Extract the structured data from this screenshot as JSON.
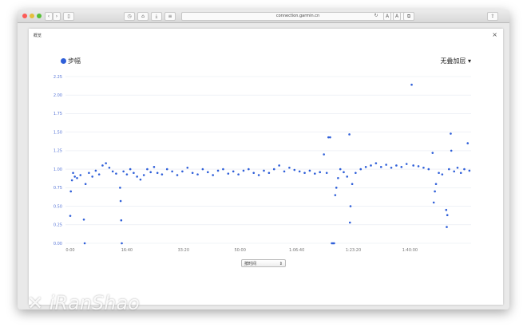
{
  "browser": {
    "url": "connection.garmin.cn",
    "colors": {
      "close": "#fc5b57",
      "min": "#e5bf3c",
      "max": "#57c038"
    }
  },
  "modal": {
    "title": "概览",
    "close_icon": "close-icon"
  },
  "legend": {
    "label": "步幅",
    "color": "#2f5fd9"
  },
  "overlay_dropdown": {
    "label": "无叠加层 ▾"
  },
  "x_select": {
    "value": "按时间"
  },
  "watermark": "iRanShao",
  "chart_data": {
    "type": "scatter",
    "series": [
      {
        "name": "步幅",
        "color": "#2f5fd9"
      }
    ],
    "ylim": [
      0,
      2.25
    ],
    "yticks": [
      "0.00",
      "0.25",
      "0.50",
      "0.75",
      "1.00",
      "1.25",
      "1.50",
      "1.75",
      "2.00",
      "2.25"
    ],
    "xticks": [
      "0:00",
      "16:40",
      "33:20",
      "50:00",
      "1:06:40",
      "1:23:20",
      "1:40:00"
    ],
    "xlim": [
      "0:00",
      "1:58:00"
    ],
    "grid": true,
    "points": [
      [
        "0:00",
        0.37
      ],
      [
        "0:10",
        0.7
      ],
      [
        "0:30",
        0.85
      ],
      [
        "0:50",
        0.95
      ],
      [
        "1:20",
        0.9
      ],
      [
        "2:00",
        0.88
      ],
      [
        "3:00",
        0.92
      ],
      [
        "4:00",
        0.32
      ],
      [
        "4:15",
        0.0
      ],
      [
        "4:30",
        0.8
      ],
      [
        "5:30",
        0.95
      ],
      [
        "6:30",
        0.9
      ],
      [
        "7:30",
        0.98
      ],
      [
        "8:30",
        0.93
      ],
      [
        "9:30",
        1.05
      ],
      [
        "10:30",
        1.08
      ],
      [
        "11:30",
        1.02
      ],
      [
        "12:30",
        0.97
      ],
      [
        "13:30",
        0.94
      ],
      [
        "14:40",
        0.75
      ],
      [
        "14:50",
        0.57
      ],
      [
        "15:00",
        0.31
      ],
      [
        "15:10",
        0.0
      ],
      [
        "15:40",
        0.97
      ],
      [
        "16:40",
        0.93
      ],
      [
        "17:40",
        1.0
      ],
      [
        "18:40",
        0.95
      ],
      [
        "19:40",
        0.9
      ],
      [
        "20:40",
        0.86
      ],
      [
        "21:40",
        0.92
      ],
      [
        "22:40",
        1.0
      ],
      [
        "23:40",
        0.96
      ],
      [
        "24:40",
        1.03
      ],
      [
        "25:40",
        0.95
      ],
      [
        "27:00",
        0.93
      ],
      [
        "28:30",
        1.0
      ],
      [
        "30:00",
        0.97
      ],
      [
        "31:30",
        0.92
      ],
      [
        "33:00",
        0.97
      ],
      [
        "34:30",
        1.02
      ],
      [
        "36:00",
        0.95
      ],
      [
        "37:30",
        0.93
      ],
      [
        "39:00",
        1.0
      ],
      [
        "40:30",
        0.96
      ],
      [
        "42:00",
        0.92
      ],
      [
        "43:30",
        0.98
      ],
      [
        "45:00",
        1.0
      ],
      [
        "46:30",
        0.94
      ],
      [
        "48:00",
        0.97
      ],
      [
        "49:30",
        0.93
      ],
      [
        "51:00",
        0.98
      ],
      [
        "52:30",
        1.0
      ],
      [
        "54:00",
        0.95
      ],
      [
        "55:30",
        0.92
      ],
      [
        "57:00",
        0.98
      ],
      [
        "58:30",
        0.95
      ],
      [
        "1:00:00",
        1.0
      ],
      [
        "1:01:30",
        1.05
      ],
      [
        "1:03:00",
        0.97
      ],
      [
        "1:04:30",
        1.02
      ],
      [
        "1:06:00",
        0.99
      ],
      [
        "1:07:30",
        0.97
      ],
      [
        "1:09:00",
        0.95
      ],
      [
        "1:10:30",
        0.98
      ],
      [
        "1:12:00",
        0.94
      ],
      [
        "1:13:30",
        0.96
      ],
      [
        "1:14:40",
        1.2
      ],
      [
        "1:15:30",
        0.95
      ],
      [
        "1:16:00",
        1.43
      ],
      [
        "1:16:30",
        1.43
      ],
      [
        "1:17:00",
        0.0
      ],
      [
        "1:17:20",
        0.0
      ],
      [
        "1:17:40",
        0.0
      ],
      [
        "1:18:00",
        0.65
      ],
      [
        "1:18:20",
        0.75
      ],
      [
        "1:18:50",
        0.88
      ],
      [
        "1:19:30",
        1.0
      ],
      [
        "1:20:30",
        0.96
      ],
      [
        "1:21:30",
        0.9
      ],
      [
        "1:22:10",
        1.47
      ],
      [
        "1:22:20",
        0.28
      ],
      [
        "1:22:30",
        0.5
      ],
      [
        "1:23:00",
        0.8
      ],
      [
        "1:24:00",
        0.95
      ],
      [
        "1:25:30",
        1.0
      ],
      [
        "1:27:00",
        1.03
      ],
      [
        "1:28:30",
        1.05
      ],
      [
        "1:30:00",
        1.08
      ],
      [
        "1:31:30",
        1.03
      ],
      [
        "1:33:00",
        1.06
      ],
      [
        "1:34:30",
        1.02
      ],
      [
        "1:36:00",
        1.05
      ],
      [
        "1:37:30",
        1.03
      ],
      [
        "1:39:00",
        1.07
      ],
      [
        "1:40:30",
        2.14
      ],
      [
        "1:41:00",
        1.05
      ],
      [
        "1:42:30",
        1.04
      ],
      [
        "1:44:00",
        1.02
      ],
      [
        "1:45:30",
        1.0
      ],
      [
        "1:46:40",
        1.22
      ],
      [
        "1:47:00",
        0.55
      ],
      [
        "1:47:20",
        0.7
      ],
      [
        "1:47:40",
        0.8
      ],
      [
        "1:48:30",
        0.95
      ],
      [
        "1:49:30",
        0.93
      ],
      [
        "1:50:40",
        0.45
      ],
      [
        "1:50:50",
        0.22
      ],
      [
        "1:51:00",
        0.38
      ],
      [
        "1:51:30",
        1.0
      ],
      [
        "1:52:00",
        1.48
      ],
      [
        "1:52:10",
        1.25
      ],
      [
        "1:53:00",
        0.97
      ],
      [
        "1:54:00",
        1.02
      ],
      [
        "1:55:00",
        0.95
      ],
      [
        "1:56:00",
        1.0
      ],
      [
        "1:57:00",
        1.35
      ],
      [
        "1:57:30",
        0.98
      ]
    ]
  }
}
